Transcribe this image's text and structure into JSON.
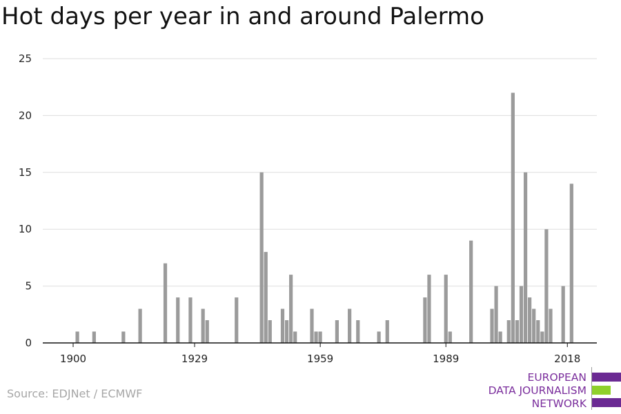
{
  "title": "Hot days per year in and around Palermo",
  "source": "Source: EDJNet / ECMWF",
  "logo": {
    "lines": [
      "EUROPEAN",
      "DATA JOURNALISM",
      "NETWORK"
    ],
    "colors": {
      "primary": "#6b2a93",
      "accent": "#8fd12b"
    }
  },
  "chart_data": {
    "type": "bar",
    "title": "Hot days per year in and around Palermo",
    "xlabel": "",
    "ylabel": "",
    "ylim": [
      0,
      25
    ],
    "yticks": [
      0,
      5,
      10,
      15,
      20,
      25
    ],
    "xticks": [
      1900,
      1929,
      1959,
      1989,
      2018
    ],
    "xlim": [
      1900,
      2018
    ],
    "grid": true,
    "bar_color": "#9b9b9b",
    "x": [
      1901,
      1905,
      1912,
      1916,
      1922,
      1925,
      1928,
      1931,
      1932,
      1939,
      1945,
      1946,
      1947,
      1950,
      1951,
      1952,
      1953,
      1957,
      1958,
      1959,
      1963,
      1966,
      1968,
      1973,
      1975,
      1984,
      1985,
      1989,
      1990,
      1995,
      2000,
      2001,
      2002,
      2004,
      2005,
      2006,
      2007,
      2008,
      2009,
      2010,
      2011,
      2012,
      2013,
      2014,
      2015,
      2017,
      2019
    ],
    "values": [
      1,
      1,
      1,
      3,
      7,
      4,
      4,
      3,
      2,
      4,
      15,
      8,
      2,
      3,
      2,
      6,
      1,
      3,
      1,
      1,
      2,
      3,
      2,
      1,
      2,
      4,
      6,
      6,
      1,
      9,
      3,
      5,
      1,
      2,
      22,
      2,
      5,
      15,
      4,
      3,
      2,
      1,
      10,
      3,
      0,
      5,
      14
    ]
  }
}
